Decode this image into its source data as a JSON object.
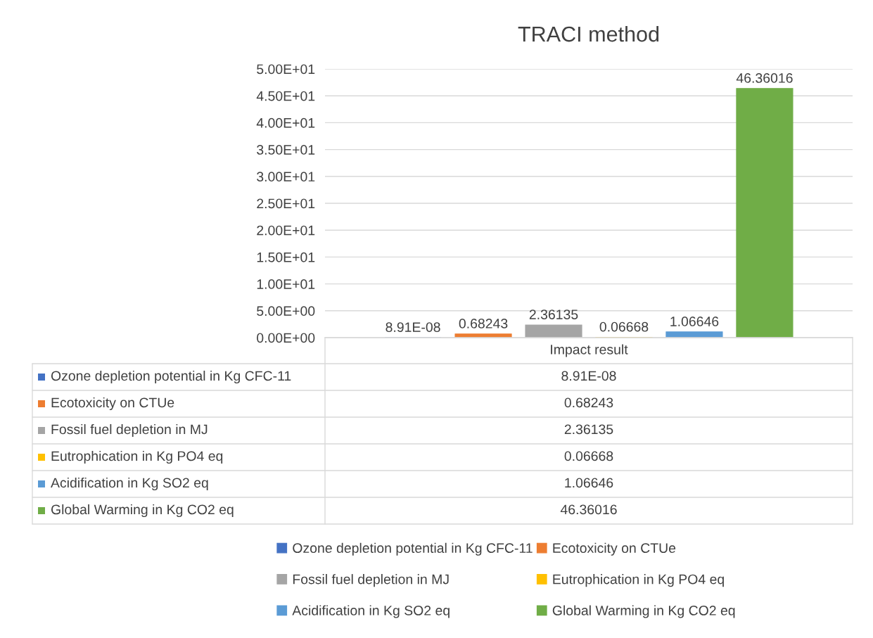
{
  "chart_data": {
    "type": "bar",
    "title": "TRACI method",
    "categories": [
      "Impact result"
    ],
    "series": [
      {
        "name": "Ozone depletion potential in Kg CFC-11",
        "color": "#4472c4",
        "values": [
          8.91e-08
        ],
        "value_labels": [
          "8.91E-08"
        ]
      },
      {
        "name": "Ecotoxicity on CTUe",
        "color": "#ed7d31",
        "values": [
          0.68243
        ],
        "value_labels": [
          "0.68243"
        ]
      },
      {
        "name": "Fossil fuel depletion in MJ",
        "color": "#a5a5a5",
        "values": [
          2.36135
        ],
        "value_labels": [
          "2.36135"
        ]
      },
      {
        "name": "Eutrophication in Kg PO4 eq",
        "color": "#ffc000",
        "values": [
          0.06668
        ],
        "value_labels": [
          "0.06668"
        ]
      },
      {
        "name": "Acidification in Kg SO2 eq",
        "color": "#5b9bd5",
        "values": [
          1.06646
        ],
        "value_labels": [
          "1.06646"
        ]
      },
      {
        "name": "Global Warming in Kg CO2 eq",
        "color": "#70ad47",
        "values": [
          46.36016
        ],
        "value_labels": [
          "46.36016"
        ]
      }
    ],
    "ylim": [
      0,
      50
    ],
    "yticks": [
      {
        "value": 0,
        "label": "0.00E+00"
      },
      {
        "value": 5,
        "label": "5.00E+00"
      },
      {
        "value": 10,
        "label": "1.00E+01"
      },
      {
        "value": 15,
        "label": "1.50E+01"
      },
      {
        "value": 20,
        "label": "2.00E+01"
      },
      {
        "value": 25,
        "label": "2.50E+01"
      },
      {
        "value": 30,
        "label": "3.00E+01"
      },
      {
        "value": 35,
        "label": "3.50E+01"
      },
      {
        "value": 40,
        "label": "4.00E+01"
      },
      {
        "value": 45,
        "label": "4.50E+01"
      },
      {
        "value": 50,
        "label": "5.00E+01"
      }
    ],
    "grid": "y",
    "legend": "bottom"
  }
}
